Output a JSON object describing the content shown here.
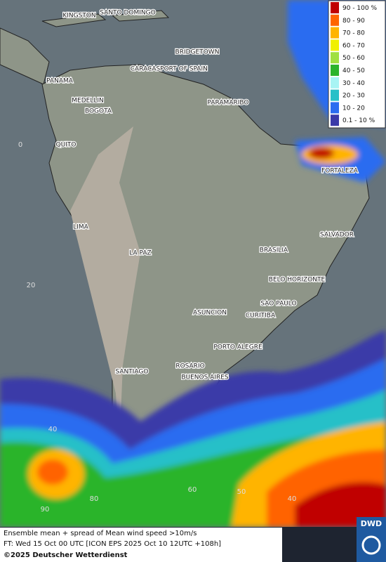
{
  "legend": {
    "items": [
      {
        "label": "90 - 100 %",
        "color": "#c00000"
      },
      {
        "label": "80 - 90",
        "color": "#ff6400"
      },
      {
        "label": "70 - 80",
        "color": "#ffb400"
      },
      {
        "label": "60 - 70",
        "color": "#f0f000"
      },
      {
        "label": "50 - 60",
        "color": "#a0e040"
      },
      {
        "label": "40 - 50",
        "color": "#2cb42c"
      },
      {
        "label": "30 - 40",
        "color": "#a8f4f4"
      },
      {
        "label": "20 - 30",
        "color": "#28c0c8"
      },
      {
        "label": "10 - 20",
        "color": "#2a6cf0"
      },
      {
        "label": "0.1 - 10 %",
        "color": "#3a3aa8"
      }
    ]
  },
  "cities": [
    "KINGSTON",
    "SANTO DOMINGO",
    "BRIDGETOWN",
    "CARACAS",
    "PORT OF SPAIN",
    "PANAMA",
    "MEDELLIN",
    "BOGOTA",
    "PARAMARIBO",
    "QUITO",
    "FORTALEZA",
    "LIMA",
    "SALVADOR",
    "BRASILIA",
    "LA PAZ",
    "BELO HORIZONTE",
    "SAO PAULO",
    "ASUNCION",
    "CURITIBA",
    "PORTO ALEGRE",
    "ROSARIO",
    "SANTIAGO",
    "BUENOS AIRES"
  ],
  "grid_labels": [
    "0",
    "20",
    "40",
    "90",
    "80",
    "60",
    "50",
    "40"
  ],
  "footer": {
    "title": "Ensemble mean + spread of Mean wind speed >10m/s",
    "forecast": "FT: Wed 15 Oct 00 UTC [ICON EPS 2025 Oct 10 12UTC +108h]",
    "copyright": "©2025 Deutscher Wetterdienst"
  },
  "logo": "DWD"
}
